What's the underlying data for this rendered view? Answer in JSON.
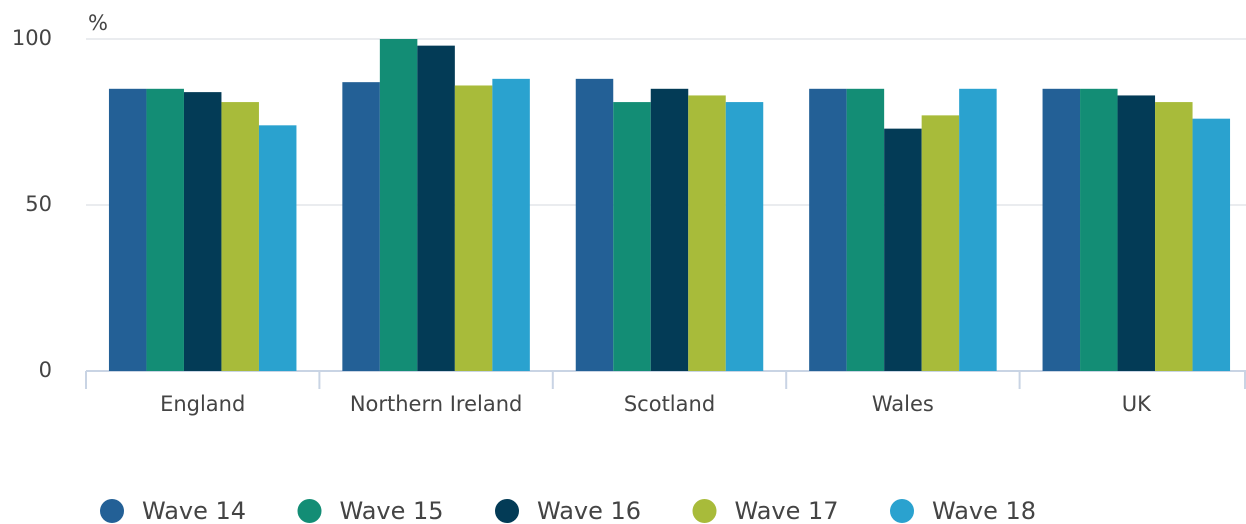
{
  "chart_data": {
    "type": "bar",
    "y_label": "%",
    "categories": [
      "England",
      "Northern Ireland",
      "Scotland",
      "Wales",
      "UK"
    ],
    "series": [
      {
        "name": "Wave 14",
        "color": "#236096",
        "values": [
          85,
          87,
          88,
          85,
          85
        ]
      },
      {
        "name": "Wave 15",
        "color": "#138d75",
        "values": [
          85,
          100,
          81,
          85,
          85
        ]
      },
      {
        "name": "Wave 16",
        "color": "#033b56",
        "values": [
          84,
          98,
          85,
          73,
          83
        ]
      },
      {
        "name": "Wave 17",
        "color": "#a8bb3a",
        "values": [
          81,
          86,
          83,
          77,
          81
        ]
      },
      {
        "name": "Wave 18",
        "color": "#2aa2cf",
        "values": [
          74,
          88,
          81,
          85,
          76
        ]
      }
    ],
    "ylim": [
      0,
      100
    ],
    "yticks": [
      0,
      50,
      100
    ],
    "grid": true,
    "legend": "bottom"
  }
}
